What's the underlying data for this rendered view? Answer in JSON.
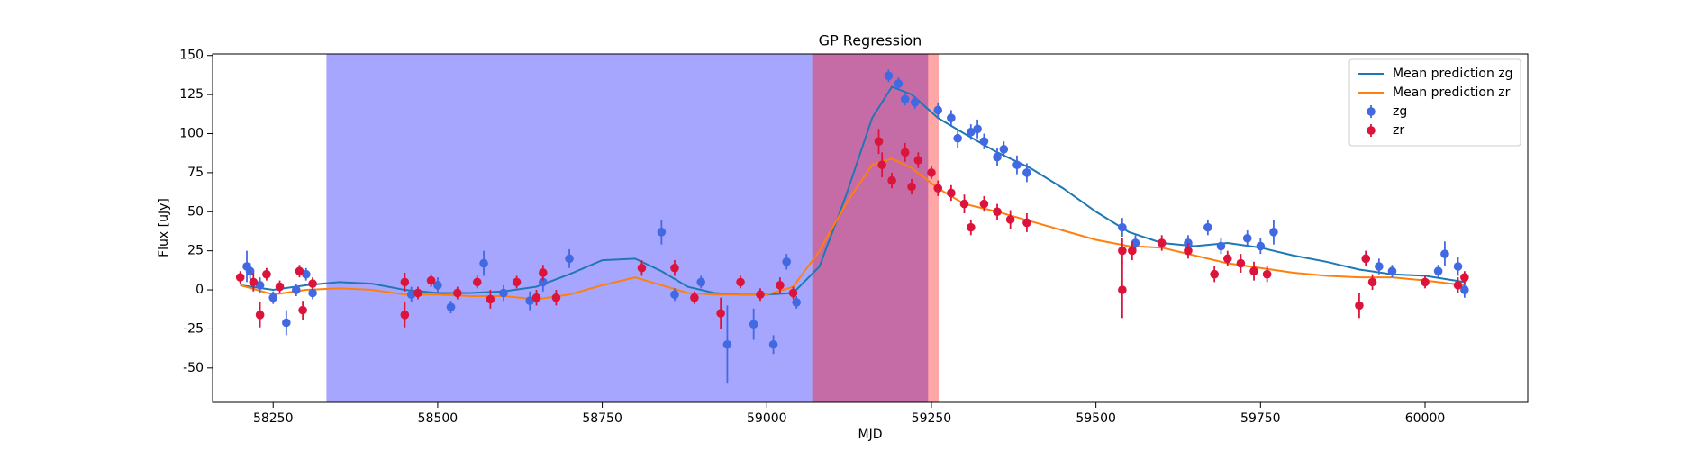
{
  "chart_data": {
    "type": "errorbar",
    "title": "GP Regression",
    "x_label": "MJD",
    "y_label": "Flux [uJy]",
    "xlim": [
      58158,
      60156
    ],
    "ylim": [
      -72,
      151
    ],
    "xticks": [
      58250,
      58500,
      58750,
      59000,
      59250,
      59500,
      59750,
      60000
    ],
    "yticks": [
      -50,
      -25,
      0,
      25,
      50,
      75,
      100,
      125,
      150
    ],
    "grid": false,
    "legend": "upper right",
    "spans": [
      {
        "start": 58331,
        "end": 59245,
        "color": "#0000ff"
      },
      {
        "start": 59069,
        "end": 59261,
        "color": "#ff0000"
      }
    ],
    "series": [
      {
        "name": "Mean prediction zg",
        "mode": "line",
        "color": "#1f77b4",
        "x": [
          58200,
          58250,
          58300,
          58350,
          58400,
          58450,
          58500,
          58550,
          58600,
          58650,
          58700,
          58750,
          58800,
          58840,
          58880,
          58920,
          58960,
          59000,
          59040,
          59080,
          59120,
          59160,
          59190,
          59220,
          59260,
          59300,
          59350,
          59400,
          59450,
          59500,
          59550,
          59600,
          59650,
          59700,
          59750,
          59800,
          59850,
          59900,
          59950,
          60000,
          60060
        ],
        "values": [
          3,
          0,
          3,
          5,
          4,
          0,
          -2,
          -2,
          -1,
          2,
          10,
          19,
          20,
          12,
          2,
          -2,
          -3,
          -3,
          -2,
          15,
          60,
          110,
          130,
          125,
          110,
          100,
          88,
          78,
          65,
          50,
          37,
          30,
          28,
          30,
          27,
          22,
          18,
          13,
          10,
          9,
          5
        ]
      },
      {
        "name": "Mean prediction zr",
        "mode": "line",
        "color": "#ff7f0e",
        "x": [
          58200,
          58250,
          58300,
          58350,
          58400,
          58450,
          58500,
          58550,
          58600,
          58650,
          58700,
          58750,
          58800,
          58840,
          58880,
          58920,
          58960,
          59000,
          59040,
          59080,
          59120,
          59160,
          59190,
          59220,
          59260,
          59300,
          59350,
          59400,
          59450,
          59500,
          59550,
          59600,
          59650,
          59700,
          59750,
          59800,
          59850,
          59900,
          59950,
          60000,
          60060
        ],
        "values": [
          3,
          -3,
          0,
          1,
          0,
          -3,
          -3,
          -4,
          -4,
          -6,
          -3,
          3,
          8,
          3,
          -2,
          -3,
          -3,
          -3,
          2,
          25,
          55,
          80,
          84,
          78,
          65,
          55,
          50,
          44,
          38,
          32,
          28,
          27,
          22,
          17,
          14,
          11,
          9,
          8,
          8,
          6,
          3
        ]
      },
      {
        "name": "zg",
        "mode": "errorbar",
        "color": "#4169e1",
        "x": [
          58210,
          58215,
          58230,
          58250,
          58270,
          58285,
          58300,
          58310,
          58460,
          58500,
          58520,
          58570,
          58600,
          58640,
          58660,
          58700,
          58840,
          58860,
          58900,
          58940,
          58980,
          59010,
          59030,
          59045,
          59185,
          59200,
          59210,
          59225,
          59260,
          59280,
          59290,
          59310,
          59320,
          59330,
          59350,
          59360,
          59380,
          59395,
          59540,
          59560,
          59640,
          59670,
          59690,
          59730,
          59750,
          59770,
          59910,
          59930,
          59950,
          60020,
          60030,
          60050,
          60060
        ],
        "values": [
          15,
          12,
          3,
          -5,
          -21,
          0,
          10,
          -2,
          -3,
          3,
          -11,
          17,
          -2,
          -7,
          5,
          20,
          37,
          -3,
          5,
          -35,
          -22,
          -35,
          18,
          -8,
          137,
          132,
          122,
          120,
          115,
          110,
          97,
          101,
          103,
          95,
          85,
          90,
          80,
          75,
          40,
          30,
          30,
          40,
          28,
          33,
          28,
          37,
          20,
          15,
          12,
          12,
          23,
          15,
          0
        ],
        "errors": [
          10,
          5,
          5,
          4,
          8,
          4,
          4,
          4,
          5,
          5,
          4,
          8,
          5,
          6,
          6,
          6,
          8,
          4,
          4,
          25,
          10,
          6,
          5,
          4,
          4,
          4,
          4,
          4,
          5,
          5,
          6,
          5,
          6,
          5,
          6,
          5,
          6,
          6,
          6,
          5,
          5,
          5,
          5,
          5,
          5,
          8,
          5,
          5,
          4,
          4,
          8,
          6,
          5
        ]
      },
      {
        "name": "zr",
        "mode": "errorbar",
        "color": "#dc143c",
        "x": [
          58200,
          58220,
          58230,
          58240,
          58260,
          58290,
          58295,
          58310,
          58450,
          58450,
          58470,
          58490,
          58530,
          58560,
          58580,
          58620,
          58650,
          58660,
          58680,
          58810,
          58860,
          58890,
          58930,
          58960,
          58990,
          59020,
          59040,
          59170,
          59175,
          59190,
          59210,
          59220,
          59230,
          59250,
          59260,
          59280,
          59300,
          59310,
          59330,
          59350,
          59370,
          59395,
          59540,
          59540,
          59555,
          59600,
          59640,
          59680,
          59700,
          59720,
          59740,
          59760,
          59900,
          59910,
          59920,
          60000,
          60050,
          60060
        ],
        "values": [
          8,
          5,
          -16,
          10,
          2,
          12,
          -13,
          4,
          5,
          -16,
          -2,
          6,
          -2,
          5,
          -6,
          5,
          -5,
          11,
          -5,
          14,
          14,
          -5,
          -15,
          5,
          -3,
          3,
          -2,
          95,
          80,
          70,
          88,
          66,
          83,
          75,
          65,
          62,
          55,
          40,
          55,
          50,
          45,
          43,
          0,
          25,
          25,
          30,
          25,
          10,
          20,
          17,
          12,
          10,
          -10,
          20,
          5,
          5,
          3,
          8
        ],
        "errors": [
          4,
          6,
          8,
          4,
          4,
          4,
          6,
          4,
          6,
          8,
          4,
          4,
          4,
          4,
          6,
          4,
          5,
          5,
          5,
          5,
          5,
          4,
          10,
          4,
          4,
          5,
          4,
          8,
          8,
          5,
          6,
          5,
          5,
          4,
          5,
          5,
          6,
          5,
          5,
          5,
          6,
          6,
          18,
          8,
          6,
          5,
          5,
          5,
          5,
          6,
          6,
          5,
          8,
          5,
          5,
          4,
          5,
          4
        ]
      }
    ]
  }
}
